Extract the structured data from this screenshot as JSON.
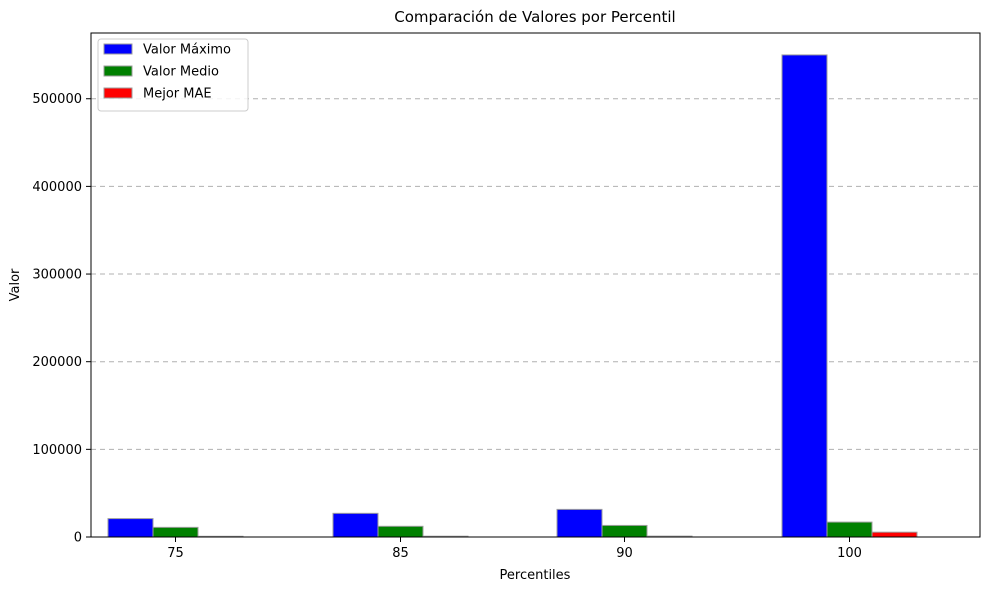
{
  "chart_data": {
    "type": "bar",
    "title": "Comparación de Valores por Percentil",
    "xlabel": "Percentiles",
    "ylabel": "Valor",
    "categories": [
      "75",
      "85",
      "90",
      "100"
    ],
    "series": [
      {
        "name": "Valor Máximo",
        "color": "#0000ff",
        "values": [
          21000,
          27000,
          31500,
          550000
        ]
      },
      {
        "name": "Valor Medio",
        "color": "#008000",
        "values": [
          11000,
          12200,
          13200,
          17000
        ]
      },
      {
        "name": "Mejor MAE",
        "color": "#ff0000",
        "values": [
          800,
          900,
          1000,
          5500
        ]
      }
    ],
    "ylim": [
      0,
      575000
    ],
    "yticks": [
      0,
      100000,
      200000,
      300000,
      400000,
      500000
    ],
    "ytick_labels": [
      "0",
      "100000",
      "200000",
      "300000",
      "400000",
      "500000"
    ],
    "grid": "y-dashed",
    "legend_position": "top-left"
  }
}
